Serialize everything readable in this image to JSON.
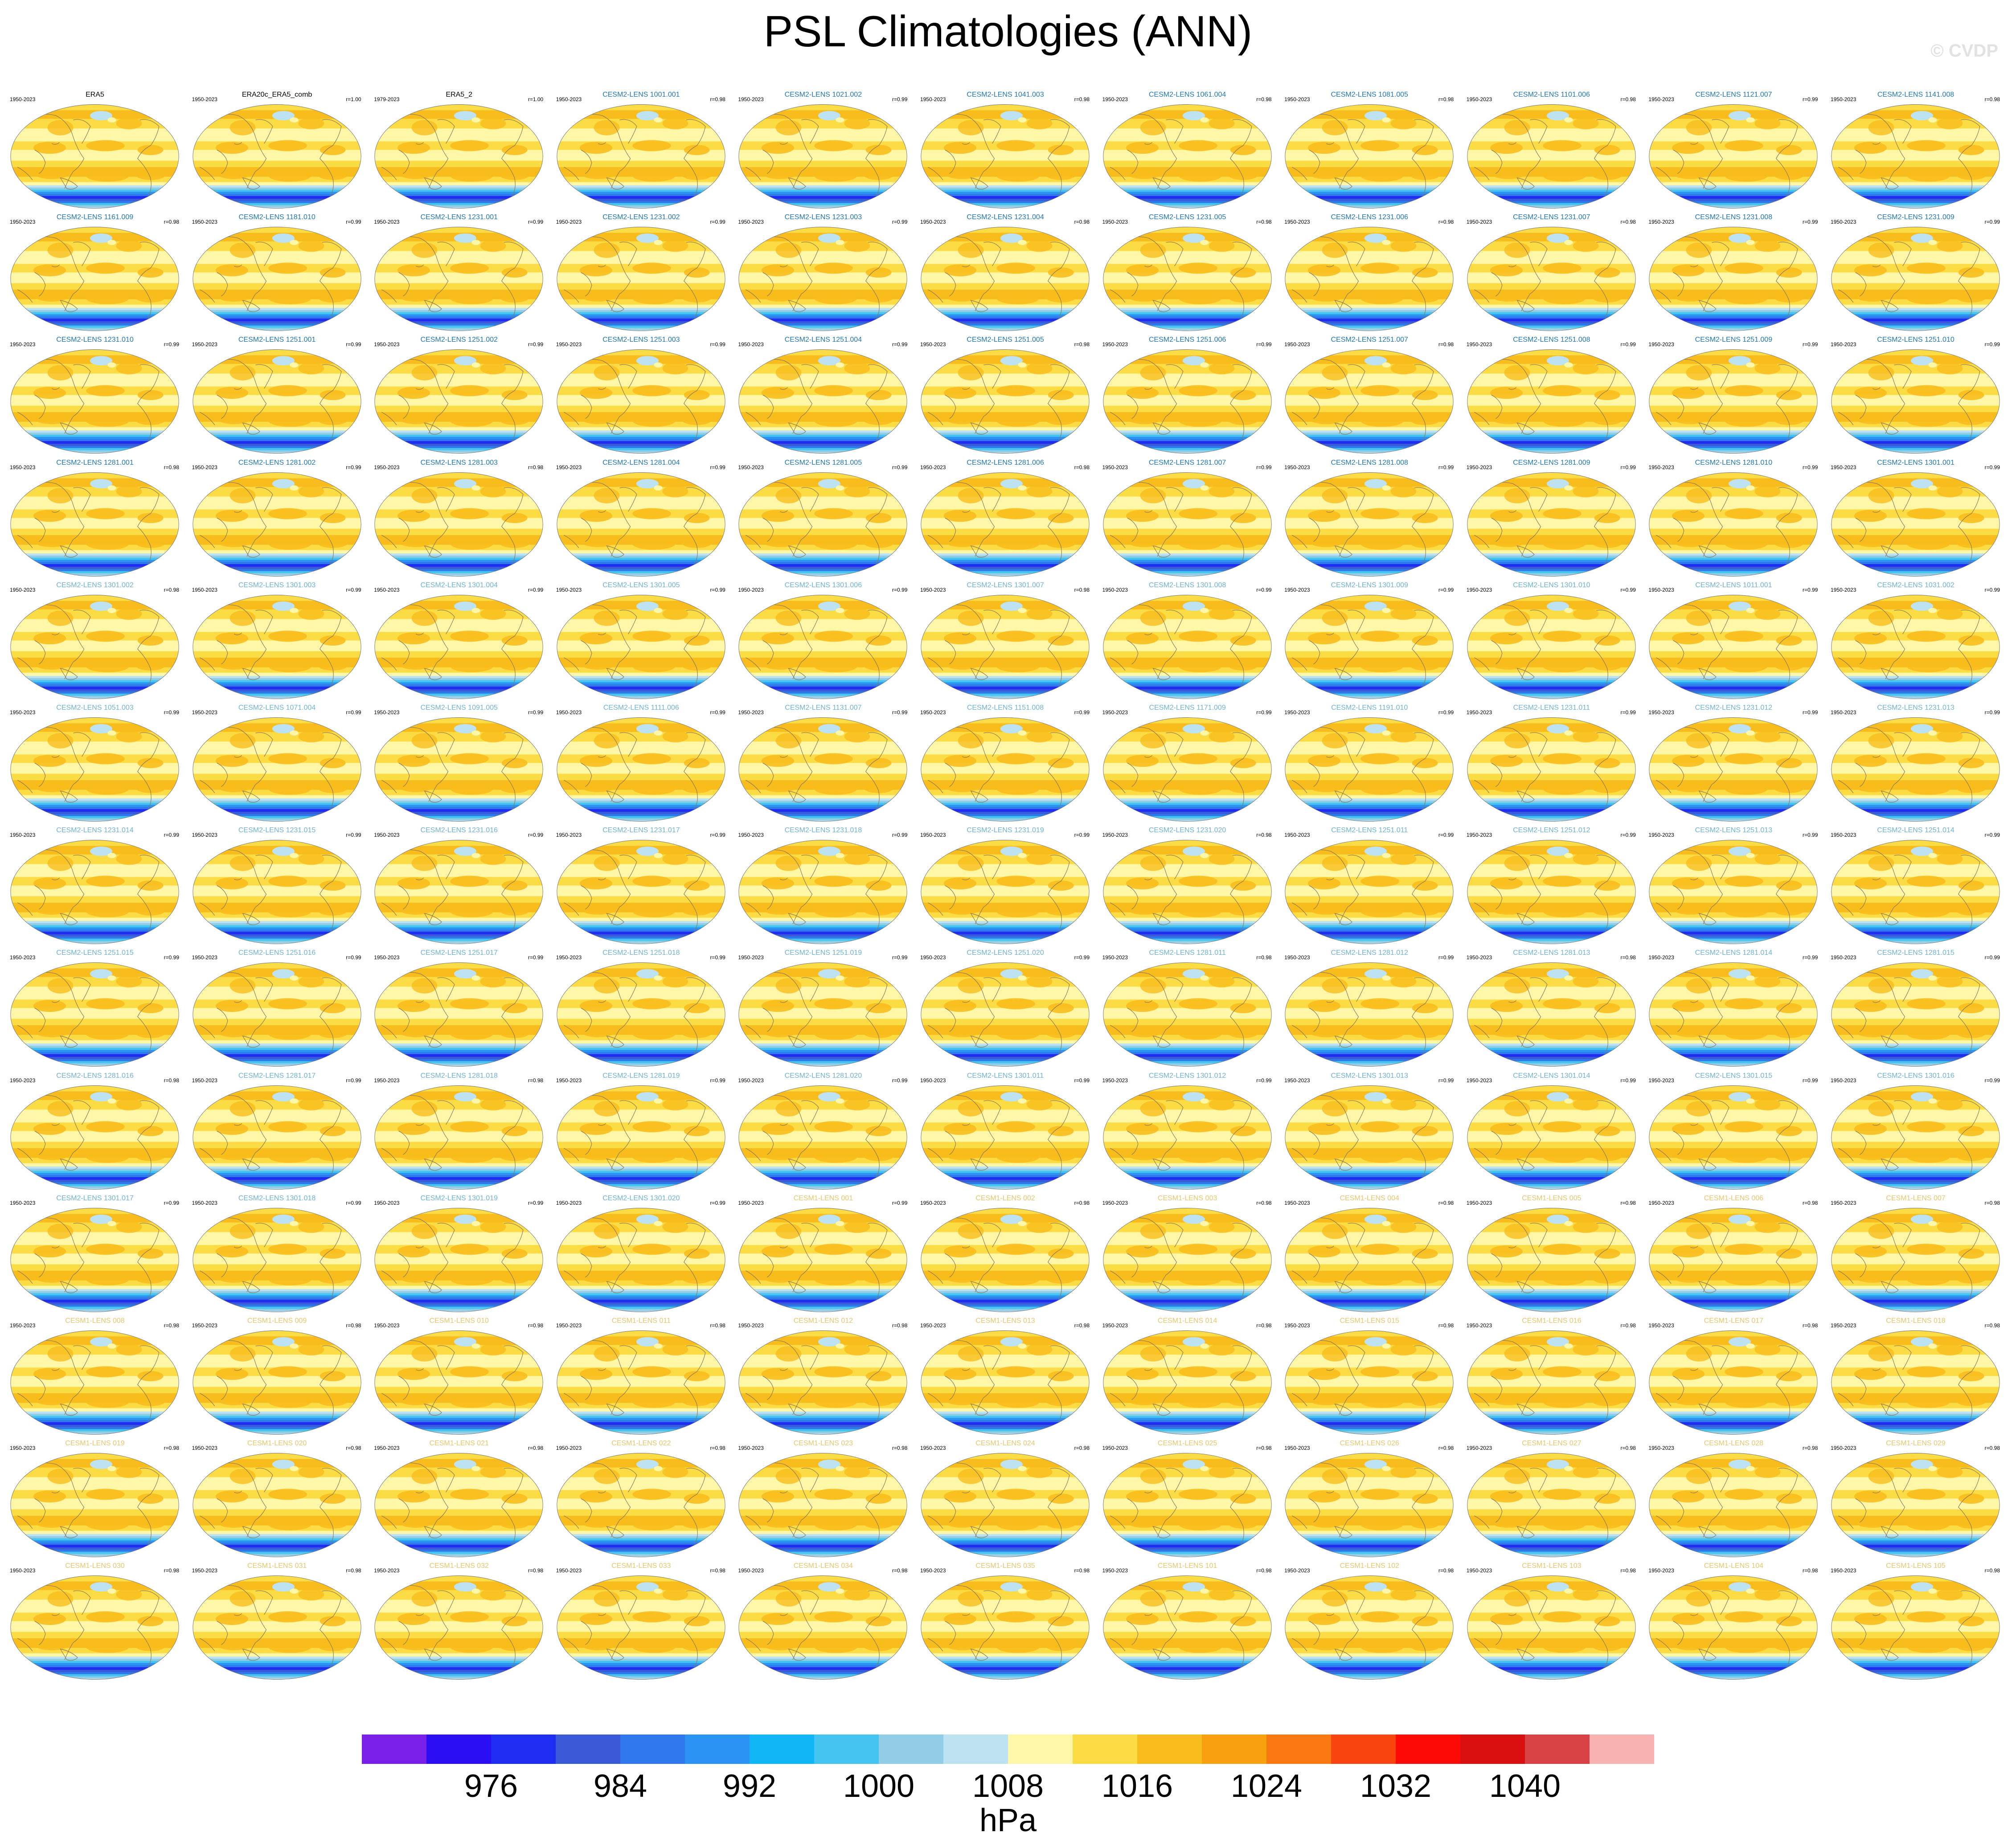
{
  "title": "PSL Climatologies (ANN)",
  "watermark": "© CVDP",
  "chart_data": {
    "type": "map_grid",
    "variable": "PSL",
    "season": "ANN",
    "units": "hPa",
    "colorbar": {
      "boundaries": [
        972,
        976,
        980,
        984,
        988,
        992,
        996,
        1000,
        1004,
        1008,
        1012,
        1016,
        1020,
        1024,
        1028,
        1032,
        1036,
        1040,
        1044
      ],
      "colors": [
        "#7a1fe8",
        "#2a0ff5",
        "#1f2cf2",
        "#3a5ad8",
        "#2f78ec",
        "#2a93f4",
        "#11b6f6",
        "#44c4f0",
        "#92cde8",
        "#bde3f3",
        "#fff7a8",
        "#fcdc45",
        "#f8bd1c",
        "#f8a010",
        "#f97812",
        "#f94410",
        "#fb0a06",
        "#d80f0f",
        "#d94245",
        "#f9b2b2"
      ],
      "tick_labels": [
        "976",
        "984",
        "992",
        "1000",
        "1008",
        "1016",
        "1024",
        "1032",
        "1040"
      ],
      "label": "hPa"
    },
    "panels": [
      {
        "name": "ERA5",
        "period": "1950-2023",
        "corr": ""
      },
      {
        "name": "ERA20c_ERA5_comb",
        "period": "1950-2023",
        "corr": "r=1.00"
      },
      {
        "name": "ERA5_2",
        "period": "1979-2023",
        "corr": "r=1.00"
      },
      {
        "name": "CESM2-LENS 1001.001",
        "period": "1950-2023",
        "corr": "r=0.98"
      },
      {
        "name": "CESM2-LENS 1021.002",
        "period": "1950-2023",
        "corr": "r=0.99"
      },
      {
        "name": "CESM2-LENS 1041.003",
        "period": "1950-2023",
        "corr": "r=0.98"
      },
      {
        "name": "CESM2-LENS 1061.004",
        "period": "1950-2023",
        "corr": "r=0.98"
      },
      {
        "name": "CESM2-LENS 1081.005",
        "period": "1950-2023",
        "corr": "r=0.98"
      },
      {
        "name": "CESM2-LENS 1101.006",
        "period": "1950-2023",
        "corr": "r=0.98"
      },
      {
        "name": "CESM2-LENS 1121.007",
        "period": "1950-2023",
        "corr": "r=0.99"
      },
      {
        "name": "CESM2-LENS 1141.008",
        "period": "1950-2023",
        "corr": "r=0.98"
      },
      {
        "name": "CESM2-LENS 1161.009",
        "period": "1950-2023",
        "corr": "r=0.98"
      },
      {
        "name": "CESM2-LENS 1181.010",
        "period": "1950-2023",
        "corr": "r=0.99"
      },
      {
        "name": "CESM2-LENS 1231.001",
        "period": "1950-2023",
        "corr": "r=0.99"
      },
      {
        "name": "CESM2-LENS 1231.002",
        "period": "1950-2023",
        "corr": "r=0.99"
      },
      {
        "name": "CESM2-LENS 1231.003",
        "period": "1950-2023",
        "corr": "r=0.99"
      },
      {
        "name": "CESM2-LENS 1231.004",
        "period": "1950-2023",
        "corr": "r=0.98"
      },
      {
        "name": "CESM2-LENS 1231.005",
        "period": "1950-2023",
        "corr": "r=0.98"
      },
      {
        "name": "CESM2-LENS 1231.006",
        "period": "1950-2023",
        "corr": "r=0.98"
      },
      {
        "name": "CESM2-LENS 1231.007",
        "period": "1950-2023",
        "corr": "r=0.98"
      },
      {
        "name": "CESM2-LENS 1231.008",
        "period": "1950-2023",
        "corr": "r=0.99"
      },
      {
        "name": "CESM2-LENS 1231.009",
        "period": "1950-2023",
        "corr": "r=0.99"
      },
      {
        "name": "CESM2-LENS 1231.010",
        "period": "1950-2023",
        "corr": "r=0.99"
      },
      {
        "name": "CESM2-LENS 1251.001",
        "period": "1950-2023",
        "corr": "r=0.99"
      },
      {
        "name": "CESM2-LENS 1251.002",
        "period": "1950-2023",
        "corr": "r=0.99"
      },
      {
        "name": "CESM2-LENS 1251.003",
        "period": "1950-2023",
        "corr": "r=0.99"
      },
      {
        "name": "CESM2-LENS 1251.004",
        "period": "1950-2023",
        "corr": "r=0.99"
      },
      {
        "name": "CESM2-LENS 1251.005",
        "period": "1950-2023",
        "corr": "r=0.98"
      },
      {
        "name": "CESM2-LENS 1251.006",
        "period": "1950-2023",
        "corr": "r=0.99"
      },
      {
        "name": "CESM2-LENS 1251.007",
        "period": "1950-2023",
        "corr": "r=0.98"
      },
      {
        "name": "CESM2-LENS 1251.008",
        "period": "1950-2023",
        "corr": "r=0.99"
      },
      {
        "name": "CESM2-LENS 1251.009",
        "period": "1950-2023",
        "corr": "r=0.99"
      },
      {
        "name": "CESM2-LENS 1251.010",
        "period": "1950-2023",
        "corr": "r=0.99"
      },
      {
        "name": "CESM2-LENS 1281.001",
        "period": "1950-2023",
        "corr": "r=0.98"
      },
      {
        "name": "CESM2-LENS 1281.002",
        "period": "1950-2023",
        "corr": "r=0.99"
      },
      {
        "name": "CESM2-LENS 1281.003",
        "period": "1950-2023",
        "corr": "r=0.98"
      },
      {
        "name": "CESM2-LENS 1281.004",
        "period": "1950-2023",
        "corr": "r=0.99"
      },
      {
        "name": "CESM2-LENS 1281.005",
        "period": "1950-2023",
        "corr": "r=0.99"
      },
      {
        "name": "CESM2-LENS 1281.006",
        "period": "1950-2023",
        "corr": "r=0.98"
      },
      {
        "name": "CESM2-LENS 1281.007",
        "period": "1950-2023",
        "corr": "r=0.99"
      },
      {
        "name": "CESM2-LENS 1281.008",
        "period": "1950-2023",
        "corr": "r=0.99"
      },
      {
        "name": "CESM2-LENS 1281.009",
        "period": "1950-2023",
        "corr": "r=0.99"
      },
      {
        "name": "CESM2-LENS 1281.010",
        "period": "1950-2023",
        "corr": "r=0.99"
      },
      {
        "name": "CESM2-LENS 1301.001",
        "period": "1950-2023",
        "corr": "r=0.99"
      },
      {
        "name": "CESM2-LENS 1301.002",
        "period": "1950-2023",
        "corr": "r=0.98"
      },
      {
        "name": "CESM2-LENS 1301.003",
        "period": "1950-2023",
        "corr": "r=0.99"
      },
      {
        "name": "CESM2-LENS 1301.004",
        "period": "1950-2023",
        "corr": "r=0.99"
      },
      {
        "name": "CESM2-LENS 1301.005",
        "period": "1950-2023",
        "corr": "r=0.99"
      },
      {
        "name": "CESM2-LENS 1301.006",
        "period": "1950-2023",
        "corr": "r=0.99"
      },
      {
        "name": "CESM2-LENS 1301.007",
        "period": "1950-2023",
        "corr": "r=0.98"
      },
      {
        "name": "CESM2-LENS 1301.008",
        "period": "1950-2023",
        "corr": "r=0.99"
      },
      {
        "name": "CESM2-LENS 1301.009",
        "period": "1950-2023",
        "corr": "r=0.99"
      },
      {
        "name": "CESM2-LENS 1301.010",
        "period": "1950-2023",
        "corr": "r=0.99"
      },
      {
        "name": "CESM2-LENS 1011.001",
        "period": "1950-2023",
        "corr": "r=0.99"
      },
      {
        "name": "CESM2-LENS 1031.002",
        "period": "1950-2023",
        "corr": "r=0.99"
      },
      {
        "name": "CESM2-LENS 1051.003",
        "period": "1950-2023",
        "corr": "r=0.99"
      },
      {
        "name": "CESM2-LENS 1071.004",
        "period": "1950-2023",
        "corr": "r=0.99"
      },
      {
        "name": "CESM2-LENS 1091.005",
        "period": "1950-2023",
        "corr": "r=0.99"
      },
      {
        "name": "CESM2-LENS 1111.006",
        "period": "1950-2023",
        "corr": "r=0.99"
      },
      {
        "name": "CESM2-LENS 1131.007",
        "period": "1950-2023",
        "corr": "r=0.99"
      },
      {
        "name": "CESM2-LENS 1151.008",
        "period": "1950-2023",
        "corr": "r=0.99"
      },
      {
        "name": "CESM2-LENS 1171.009",
        "period": "1950-2023",
        "corr": "r=0.99"
      },
      {
        "name": "CESM2-LENS 1191.010",
        "period": "1950-2023",
        "corr": "r=0.99"
      },
      {
        "name": "CESM2-LENS 1231.011",
        "period": "1950-2023",
        "corr": "r=0.99"
      },
      {
        "name": "CESM2-LENS 1231.012",
        "period": "1950-2023",
        "corr": "r=0.99"
      },
      {
        "name": "CESM2-LENS 1231.013",
        "period": "1950-2023",
        "corr": "r=0.99"
      },
      {
        "name": "CESM2-LENS 1231.014",
        "period": "1950-2023",
        "corr": "r=0.99"
      },
      {
        "name": "CESM2-LENS 1231.015",
        "period": "1950-2023",
        "corr": "r=0.99"
      },
      {
        "name": "CESM2-LENS 1231.016",
        "period": "1950-2023",
        "corr": "r=0.99"
      },
      {
        "name": "CESM2-LENS 1231.017",
        "period": "1950-2023",
        "corr": "r=0.99"
      },
      {
        "name": "CESM2-LENS 1231.018",
        "period": "1950-2023",
        "corr": "r=0.99"
      },
      {
        "name": "CESM2-LENS 1231.019",
        "period": "1950-2023",
        "corr": "r=0.99"
      },
      {
        "name": "CESM2-LENS 1231.020",
        "period": "1950-2023",
        "corr": "r=0.98"
      },
      {
        "name": "CESM2-LENS 1251.011",
        "period": "1950-2023",
        "corr": "r=0.99"
      },
      {
        "name": "CESM2-LENS 1251.012",
        "period": "1950-2023",
        "corr": "r=0.99"
      },
      {
        "name": "CESM2-LENS 1251.013",
        "period": "1950-2023",
        "corr": "r=0.99"
      },
      {
        "name": "CESM2-LENS 1251.014",
        "period": "1950-2023",
        "corr": "r=0.99"
      },
      {
        "name": "CESM2-LENS 1251.015",
        "period": "1950-2023",
        "corr": "r=0.99"
      },
      {
        "name": "CESM2-LENS 1251.016",
        "period": "1950-2023",
        "corr": "r=0.99"
      },
      {
        "name": "CESM2-LENS 1251.017",
        "period": "1950-2023",
        "corr": "r=0.99"
      },
      {
        "name": "CESM2-LENS 1251.018",
        "period": "1950-2023",
        "corr": "r=0.99"
      },
      {
        "name": "CESM2-LENS 1251.019",
        "period": "1950-2023",
        "corr": "r=0.99"
      },
      {
        "name": "CESM2-LENS 1251.020",
        "period": "1950-2023",
        "corr": "r=0.99"
      },
      {
        "name": "CESM2-LENS 1281.011",
        "period": "1950-2023",
        "corr": "r=0.98"
      },
      {
        "name": "CESM2-LENS 1281.012",
        "period": "1950-2023",
        "corr": "r=0.99"
      },
      {
        "name": "CESM2-LENS 1281.013",
        "period": "1950-2023",
        "corr": "r=0.98"
      },
      {
        "name": "CESM2-LENS 1281.014",
        "period": "1950-2023",
        "corr": "r=0.99"
      },
      {
        "name": "CESM2-LENS 1281.015",
        "period": "1950-2023",
        "corr": "r=0.99"
      },
      {
        "name": "CESM2-LENS 1281.016",
        "period": "1950-2023",
        "corr": "r=0.98"
      },
      {
        "name": "CESM2-LENS 1281.017",
        "period": "1950-2023",
        "corr": "r=0.99"
      },
      {
        "name": "CESM2-LENS 1281.018",
        "period": "1950-2023",
        "corr": "r=0.98"
      },
      {
        "name": "CESM2-LENS 1281.019",
        "period": "1950-2023",
        "corr": "r=0.99"
      },
      {
        "name": "CESM2-LENS 1281.020",
        "period": "1950-2023",
        "corr": "r=0.99"
      },
      {
        "name": "CESM2-LENS 1301.011",
        "period": "1950-2023",
        "corr": "r=0.99"
      },
      {
        "name": "CESM2-LENS 1301.012",
        "period": "1950-2023",
        "corr": "r=0.99"
      },
      {
        "name": "CESM2-LENS 1301.013",
        "period": "1950-2023",
        "corr": "r=0.99"
      },
      {
        "name": "CESM2-LENS 1301.014",
        "period": "1950-2023",
        "corr": "r=0.99"
      },
      {
        "name": "CESM2-LENS 1301.015",
        "period": "1950-2023",
        "corr": "r=0.99"
      },
      {
        "name": "CESM2-LENS 1301.016",
        "period": "1950-2023",
        "corr": "r=0.99"
      },
      {
        "name": "CESM2-LENS 1301.017",
        "period": "1950-2023",
        "corr": "r=0.99"
      },
      {
        "name": "CESM2-LENS 1301.018",
        "period": "1950-2023",
        "corr": "r=0.99"
      },
      {
        "name": "CESM2-LENS 1301.019",
        "period": "1950-2023",
        "corr": "r=0.99"
      },
      {
        "name": "CESM2-LENS 1301.020",
        "period": "1950-2023",
        "corr": "r=0.99"
      },
      {
        "name": "CESM1-LENS 001",
        "period": "1950-2023",
        "corr": "r=0.99"
      },
      {
        "name": "CESM1-LENS 002",
        "period": "1950-2023",
        "corr": "r=0.98"
      },
      {
        "name": "CESM1-LENS 003",
        "period": "1950-2023",
        "corr": "r=0.98"
      },
      {
        "name": "CESM1-LENS 004",
        "period": "1950-2023",
        "corr": "r=0.98"
      },
      {
        "name": "CESM1-LENS 005",
        "period": "1950-2023",
        "corr": "r=0.98"
      },
      {
        "name": "CESM1-LENS 006",
        "period": "1950-2023",
        "corr": "r=0.98"
      },
      {
        "name": "CESM1-LENS 007",
        "period": "1950-2023",
        "corr": "r=0.98"
      },
      {
        "name": "CESM1-LENS 008",
        "period": "1950-2023",
        "corr": "r=0.98"
      },
      {
        "name": "CESM1-LENS 009",
        "period": "1950-2023",
        "corr": "r=0.98"
      },
      {
        "name": "CESM1-LENS 010",
        "period": "1950-2023",
        "corr": "r=0.98"
      },
      {
        "name": "CESM1-LENS 011",
        "period": "1950-2023",
        "corr": "r=0.98"
      },
      {
        "name": "CESM1-LENS 012",
        "period": "1950-2023",
        "corr": "r=0.98"
      },
      {
        "name": "CESM1-LENS 013",
        "period": "1950-2023",
        "corr": "r=0.98"
      },
      {
        "name": "CESM1-LENS 014",
        "period": "1950-2023",
        "corr": "r=0.98"
      },
      {
        "name": "CESM1-LENS 015",
        "period": "1950-2023",
        "corr": "r=0.98"
      },
      {
        "name": "CESM1-LENS 016",
        "period": "1950-2023",
        "corr": "r=0.98"
      },
      {
        "name": "CESM1-LENS 017",
        "period": "1950-2023",
        "corr": "r=0.98"
      },
      {
        "name": "CESM1-LENS 018",
        "period": "1950-2023",
        "corr": "r=0.98"
      },
      {
        "name": "CESM1-LENS 019",
        "period": "1950-2023",
        "corr": "r=0.98"
      },
      {
        "name": "CESM1-LENS 020",
        "period": "1950-2023",
        "corr": "r=0.98"
      },
      {
        "name": "CESM1-LENS 021",
        "period": "1950-2023",
        "corr": "r=0.98"
      },
      {
        "name": "CESM1-LENS 022",
        "period": "1950-2023",
        "corr": "r=0.98"
      },
      {
        "name": "CESM1-LENS 023",
        "period": "1950-2023",
        "corr": "r=0.98"
      },
      {
        "name": "CESM1-LENS 024",
        "period": "1950-2023",
        "corr": "r=0.98"
      },
      {
        "name": "CESM1-LENS 025",
        "period": "1950-2023",
        "corr": "r=0.98"
      },
      {
        "name": "CESM1-LENS 026",
        "period": "1950-2023",
        "corr": "r=0.98"
      },
      {
        "name": "CESM1-LENS 027",
        "period": "1950-2023",
        "corr": "r=0.98"
      },
      {
        "name": "CESM1-LENS 028",
        "period": "1950-2023",
        "corr": "r=0.98"
      },
      {
        "name": "CESM1-LENS 029",
        "period": "1950-2023",
        "corr": "r=0.98"
      },
      {
        "name": "CESM1-LENS 030",
        "period": "1950-2023",
        "corr": "r=0.98"
      },
      {
        "name": "CESM1-LENS 031",
        "period": "1950-2023",
        "corr": "r=0.98"
      },
      {
        "name": "CESM1-LENS 032",
        "period": "1950-2023",
        "corr": "r=0.98"
      },
      {
        "name": "CESM1-LENS 033",
        "period": "1950-2023",
        "corr": "r=0.98"
      },
      {
        "name": "CESM1-LENS 034",
        "period": "1950-2023",
        "corr": "r=0.98"
      },
      {
        "name": "CESM1-LENS 035",
        "period": "1950-2023",
        "corr": "r=0.98"
      },
      {
        "name": "CESM1-LENS 101",
        "period": "1950-2023",
        "corr": "r=0.98"
      },
      {
        "name": "CESM1-LENS 102",
        "period": "1950-2023",
        "corr": "r=0.98"
      },
      {
        "name": "CESM1-LENS 103",
        "period": "1950-2023",
        "corr": "r=0.98"
      },
      {
        "name": "CESM1-LENS 104",
        "period": "1950-2023",
        "corr": "r=0.98"
      },
      {
        "name": "CESM1-LENS 105",
        "period": "1950-2023",
        "corr": "r=0.98"
      }
    ]
  }
}
